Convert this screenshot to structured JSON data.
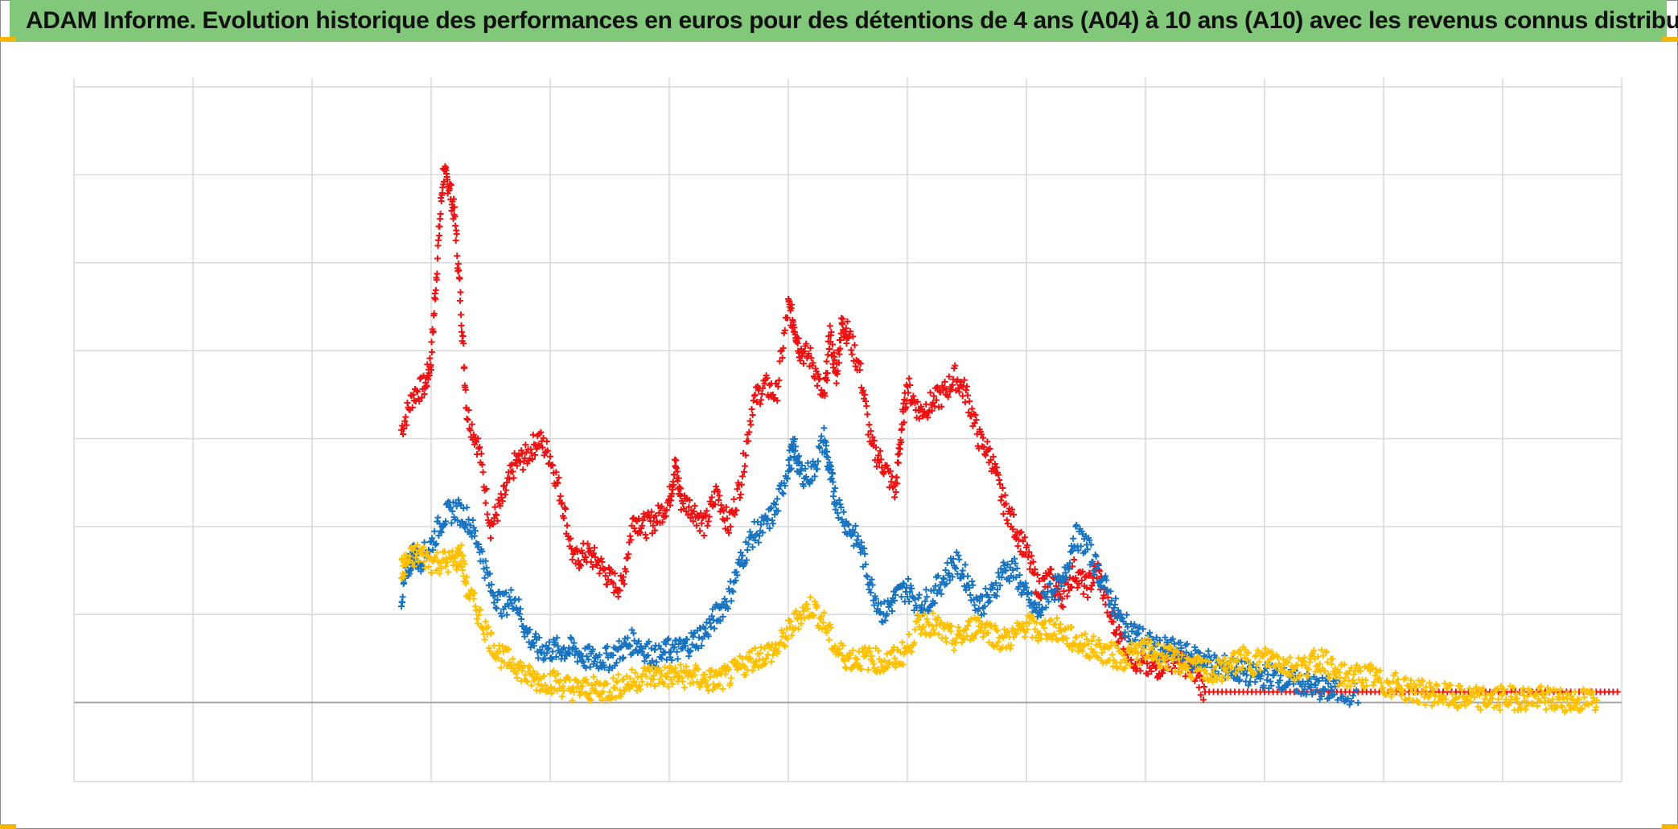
{
  "title": "ADAM Informe. Evolution historique des performances en euros pour des détentions de 4 ans (A04) à 10 ans (A10) avec les revenus connus distribués",
  "colors": {
    "title_bg": "#82c87a",
    "corner_marks": "#f2b600",
    "grid": "#d9d9d9",
    "baseline": "#a6a6a6"
  },
  "chart_data": {
    "type": "scatter",
    "marker": "plus",
    "title": "ADAM Informe. Evolution historique des performances en euros pour des détentions de 4 ans (A04) à 10 ans (A10) avec les revenus connus distribués",
    "xlabel": "",
    "ylabel": "",
    "xlim": [
      0,
      13
    ],
    "ylim": [
      -0.9,
      7.1
    ],
    "x_gridlines": [
      0,
      1,
      2,
      3,
      4,
      5,
      6,
      7,
      8,
      9,
      10,
      11,
      12,
      13
    ],
    "y_gridlines": [
      -0.9,
      0,
      1,
      2,
      3,
      4,
      5,
      6,
      7
    ],
    "baseline_y": 0,
    "tick_labels_visible": false,
    "legend": "none",
    "series": [
      {
        "name": "red",
        "color": "#ee1111",
        "points": [
          [
            2.75,
            3.1
          ],
          [
            2.85,
            3.5
          ],
          [
            2.95,
            3.6
          ],
          [
            3.0,
            3.9
          ],
          [
            3.05,
            5.0
          ],
          [
            3.1,
            6.0
          ],
          [
            3.15,
            5.9
          ],
          [
            3.2,
            5.5
          ],
          [
            3.25,
            4.5
          ],
          [
            3.3,
            3.3
          ],
          [
            3.4,
            2.9
          ],
          [
            3.5,
            2.0
          ],
          [
            3.6,
            2.3
          ],
          [
            3.7,
            2.7
          ],
          [
            3.8,
            2.8
          ],
          [
            3.9,
            3.0
          ],
          [
            4.0,
            2.8
          ],
          [
            4.1,
            2.3
          ],
          [
            4.2,
            1.6
          ],
          [
            4.3,
            1.7
          ],
          [
            4.4,
            1.6
          ],
          [
            4.5,
            1.4
          ],
          [
            4.6,
            1.3
          ],
          [
            4.7,
            2.1
          ],
          [
            4.8,
            2.0
          ],
          [
            4.9,
            2.1
          ],
          [
            5.0,
            2.3
          ],
          [
            5.05,
            2.7
          ],
          [
            5.1,
            2.3
          ],
          [
            5.2,
            2.2
          ],
          [
            5.3,
            2.0
          ],
          [
            5.4,
            2.4
          ],
          [
            5.5,
            2.0
          ],
          [
            5.6,
            2.5
          ],
          [
            5.7,
            3.4
          ],
          [
            5.8,
            3.6
          ],
          [
            5.9,
            3.5
          ],
          [
            6.0,
            4.5
          ],
          [
            6.05,
            4.3
          ],
          [
            6.1,
            4.0
          ],
          [
            6.2,
            3.9
          ],
          [
            6.3,
            3.4
          ],
          [
            6.35,
            4.2
          ],
          [
            6.4,
            3.7
          ],
          [
            6.45,
            4.3
          ],
          [
            6.5,
            4.2
          ],
          [
            6.6,
            3.8
          ],
          [
            6.7,
            2.9
          ],
          [
            6.8,
            2.7
          ],
          [
            6.9,
            2.4
          ],
          [
            6.95,
            3.1
          ],
          [
            7.0,
            3.6
          ],
          [
            7.1,
            3.3
          ],
          [
            7.2,
            3.4
          ],
          [
            7.3,
            3.5
          ],
          [
            7.4,
            3.7
          ],
          [
            7.5,
            3.5
          ],
          [
            7.6,
            3.0
          ],
          [
            7.7,
            2.8
          ],
          [
            7.8,
            2.3
          ],
          [
            7.9,
            2.0
          ],
          [
            8.0,
            1.7
          ],
          [
            8.1,
            1.3
          ],
          [
            8.2,
            1.4
          ],
          [
            8.3,
            1.2
          ],
          [
            8.4,
            1.5
          ],
          [
            8.5,
            1.3
          ],
          [
            8.6,
            1.5
          ],
          [
            8.7,
            1.0
          ],
          [
            8.8,
            0.7
          ],
          [
            8.9,
            0.5
          ],
          [
            9.0,
            0.4
          ],
          [
            9.1,
            0.4
          ],
          [
            9.2,
            0.5
          ],
          [
            9.3,
            0.45
          ],
          [
            9.4,
            0.4
          ],
          [
            9.5,
            0.12
          ],
          [
            10.0,
            0.12
          ],
          [
            10.5,
            0.12
          ],
          [
            11.0,
            0.12
          ],
          [
            11.5,
            0.12
          ],
          [
            12.0,
            0.12
          ],
          [
            12.5,
            0.12
          ],
          [
            13.0,
            0.12
          ]
        ]
      },
      {
        "name": "blue",
        "color": "#1874c0",
        "points": [
          [
            2.75,
            1.2
          ],
          [
            2.8,
            1.5
          ],
          [
            2.85,
            1.7
          ],
          [
            2.9,
            1.6
          ],
          [
            3.0,
            1.8
          ],
          [
            3.1,
            2.1
          ],
          [
            3.2,
            2.2
          ],
          [
            3.3,
            2.1
          ],
          [
            3.4,
            1.8
          ],
          [
            3.5,
            1.3
          ],
          [
            3.6,
            1.1
          ],
          [
            3.7,
            1.2
          ],
          [
            3.8,
            0.8
          ],
          [
            3.9,
            0.6
          ],
          [
            4.0,
            0.6
          ],
          [
            4.1,
            0.6
          ],
          [
            4.2,
            0.6
          ],
          [
            4.3,
            0.5
          ],
          [
            4.4,
            0.5
          ],
          [
            4.5,
            0.5
          ],
          [
            4.6,
            0.6
          ],
          [
            4.7,
            0.7
          ],
          [
            4.8,
            0.6
          ],
          [
            4.9,
            0.5
          ],
          [
            5.0,
            0.6
          ],
          [
            5.1,
            0.6
          ],
          [
            5.2,
            0.7
          ],
          [
            5.3,
            0.8
          ],
          [
            5.4,
            1.0
          ],
          [
            5.5,
            1.2
          ],
          [
            5.6,
            1.6
          ],
          [
            5.7,
            1.9
          ],
          [
            5.8,
            2.0
          ],
          [
            5.9,
            2.2
          ],
          [
            6.0,
            2.7
          ],
          [
            6.05,
            2.9
          ],
          [
            6.1,
            2.6
          ],
          [
            6.2,
            2.6
          ],
          [
            6.3,
            3.0
          ],
          [
            6.35,
            2.6
          ],
          [
            6.4,
            2.3
          ],
          [
            6.5,
            2.0
          ],
          [
            6.6,
            1.8
          ],
          [
            6.7,
            1.3
          ],
          [
            6.8,
            1.0
          ],
          [
            6.9,
            1.2
          ],
          [
            7.0,
            1.3
          ],
          [
            7.1,
            1.1
          ],
          [
            7.2,
            1.2
          ],
          [
            7.3,
            1.4
          ],
          [
            7.4,
            1.6
          ],
          [
            7.5,
            1.4
          ],
          [
            7.6,
            1.1
          ],
          [
            7.7,
            1.2
          ],
          [
            7.8,
            1.5
          ],
          [
            7.9,
            1.5
          ],
          [
            8.0,
            1.2
          ],
          [
            8.1,
            1.0
          ],
          [
            8.2,
            1.3
          ],
          [
            8.3,
            1.3
          ],
          [
            8.4,
            1.9
          ],
          [
            8.5,
            1.8
          ],
          [
            8.6,
            1.5
          ],
          [
            8.7,
            1.2
          ],
          [
            8.8,
            0.9
          ],
          [
            8.9,
            0.8
          ],
          [
            9.0,
            0.7
          ],
          [
            9.1,
            0.6
          ],
          [
            9.2,
            0.6
          ],
          [
            9.3,
            0.55
          ],
          [
            9.4,
            0.5
          ],
          [
            9.5,
            0.5
          ],
          [
            9.6,
            0.4
          ],
          [
            9.7,
            0.4
          ],
          [
            9.8,
            0.35
          ],
          [
            9.9,
            0.3
          ],
          [
            10.0,
            0.3
          ],
          [
            10.1,
            0.3
          ],
          [
            10.2,
            0.25
          ],
          [
            10.3,
            0.22
          ],
          [
            10.4,
            0.18
          ],
          [
            10.5,
            0.15
          ],
          [
            10.6,
            0.12
          ],
          [
            10.8,
            0.1
          ]
        ]
      },
      {
        "name": "yellow",
        "color": "#ffc000",
        "points": [
          [
            2.75,
            1.5
          ],
          [
            2.8,
            1.6
          ],
          [
            2.9,
            1.7
          ],
          [
            3.0,
            1.6
          ],
          [
            3.1,
            1.6
          ],
          [
            3.2,
            1.6
          ],
          [
            3.25,
            1.7
          ],
          [
            3.3,
            1.3
          ],
          [
            3.4,
            1.0
          ],
          [
            3.5,
            0.7
          ],
          [
            3.6,
            0.5
          ],
          [
            3.7,
            0.45
          ],
          [
            3.8,
            0.3
          ],
          [
            3.9,
            0.25
          ],
          [
            4.0,
            0.25
          ],
          [
            4.1,
            0.2
          ],
          [
            4.2,
            0.15
          ],
          [
            4.3,
            0.15
          ],
          [
            4.4,
            0.15
          ],
          [
            4.5,
            0.15
          ],
          [
            4.6,
            0.2
          ],
          [
            4.7,
            0.25
          ],
          [
            4.8,
            0.3
          ],
          [
            4.9,
            0.3
          ],
          [
            5.0,
            0.3
          ],
          [
            5.1,
            0.3
          ],
          [
            5.2,
            0.3
          ],
          [
            5.3,
            0.25
          ],
          [
            5.4,
            0.25
          ],
          [
            5.5,
            0.3
          ],
          [
            5.6,
            0.4
          ],
          [
            5.7,
            0.5
          ],
          [
            5.8,
            0.55
          ],
          [
            5.9,
            0.6
          ],
          [
            6.0,
            0.8
          ],
          [
            6.1,
            1.0
          ],
          [
            6.2,
            1.1
          ],
          [
            6.3,
            0.9
          ],
          [
            6.4,
            0.6
          ],
          [
            6.5,
            0.5
          ],
          [
            6.6,
            0.5
          ],
          [
            6.7,
            0.5
          ],
          [
            6.8,
            0.45
          ],
          [
            6.9,
            0.5
          ],
          [
            7.0,
            0.6
          ],
          [
            7.1,
            0.9
          ],
          [
            7.2,
            0.9
          ],
          [
            7.3,
            0.8
          ],
          [
            7.4,
            0.7
          ],
          [
            7.5,
            0.8
          ],
          [
            7.6,
            0.9
          ],
          [
            7.7,
            0.8
          ],
          [
            7.8,
            0.7
          ],
          [
            7.9,
            0.75
          ],
          [
            8.0,
            0.9
          ],
          [
            8.1,
            0.8
          ],
          [
            8.2,
            0.85
          ],
          [
            8.3,
            0.8
          ],
          [
            8.4,
            0.7
          ],
          [
            8.5,
            0.65
          ],
          [
            8.6,
            0.6
          ],
          [
            8.7,
            0.55
          ],
          [
            8.8,
            0.5
          ],
          [
            8.9,
            0.55
          ],
          [
            9.0,
            0.6
          ],
          [
            9.1,
            0.55
          ],
          [
            9.2,
            0.5
          ],
          [
            9.3,
            0.45
          ],
          [
            9.4,
            0.4
          ],
          [
            9.5,
            0.35
          ],
          [
            9.6,
            0.35
          ],
          [
            9.7,
            0.4
          ],
          [
            9.8,
            0.5
          ],
          [
            9.9,
            0.45
          ],
          [
            10.0,
            0.5
          ],
          [
            10.1,
            0.5
          ],
          [
            10.2,
            0.4
          ],
          [
            10.3,
            0.4
          ],
          [
            10.4,
            0.45
          ],
          [
            10.5,
            0.5
          ],
          [
            10.6,
            0.3
          ],
          [
            10.7,
            0.3
          ],
          [
            10.8,
            0.3
          ],
          [
            10.9,
            0.3
          ],
          [
            11.0,
            0.2
          ],
          [
            11.1,
            0.2
          ],
          [
            11.2,
            0.15
          ],
          [
            11.3,
            0.12
          ],
          [
            11.4,
            0.1
          ],
          [
            11.5,
            0.08
          ],
          [
            11.6,
            0.05
          ],
          [
            11.7,
            0.05
          ],
          [
            11.8,
            0.04
          ],
          [
            11.9,
            0.04
          ],
          [
            12.0,
            0.05
          ],
          [
            12.1,
            0.05
          ],
          [
            12.2,
            0.05
          ],
          [
            12.3,
            0.05
          ],
          [
            12.4,
            0.03
          ],
          [
            12.5,
            0.03
          ],
          [
            12.6,
            0.02
          ],
          [
            12.7,
            0.02
          ],
          [
            12.8,
            0.03
          ]
        ]
      }
    ]
  }
}
